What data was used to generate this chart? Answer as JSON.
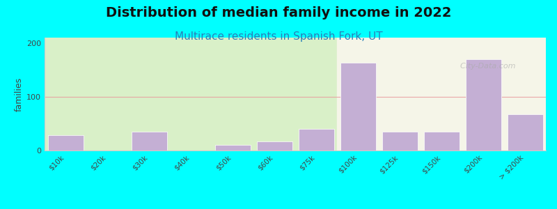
{
  "title": "Distribution of median family income in 2022",
  "subtitle": "Multirace residents in Spanish Fork, UT",
  "xlabel": "",
  "ylabel": "families",
  "categories": [
    "$10k",
    "$20k",
    "$30k",
    "$40k",
    "$50k",
    "$60k",
    "$75k",
    "$100k",
    "$125k",
    "$150k",
    "$200k",
    "> $200k"
  ],
  "values": [
    28,
    0,
    35,
    0,
    10,
    17,
    40,
    163,
    35,
    35,
    170,
    68
  ],
  "bar_color": "#c4afd4",
  "bg_color": "#00ffff",
  "plot_bg_left": "#d9f0c8",
  "plot_bg_right": "#f5f5e8",
  "ylim": [
    0,
    210
  ],
  "yticks": [
    0,
    100,
    200
  ],
  "grid_color": "#e8a0a0",
  "title_fontsize": 14,
  "subtitle_fontsize": 11,
  "ylabel_fontsize": 9,
  "tick_fontsize": 7.5
}
